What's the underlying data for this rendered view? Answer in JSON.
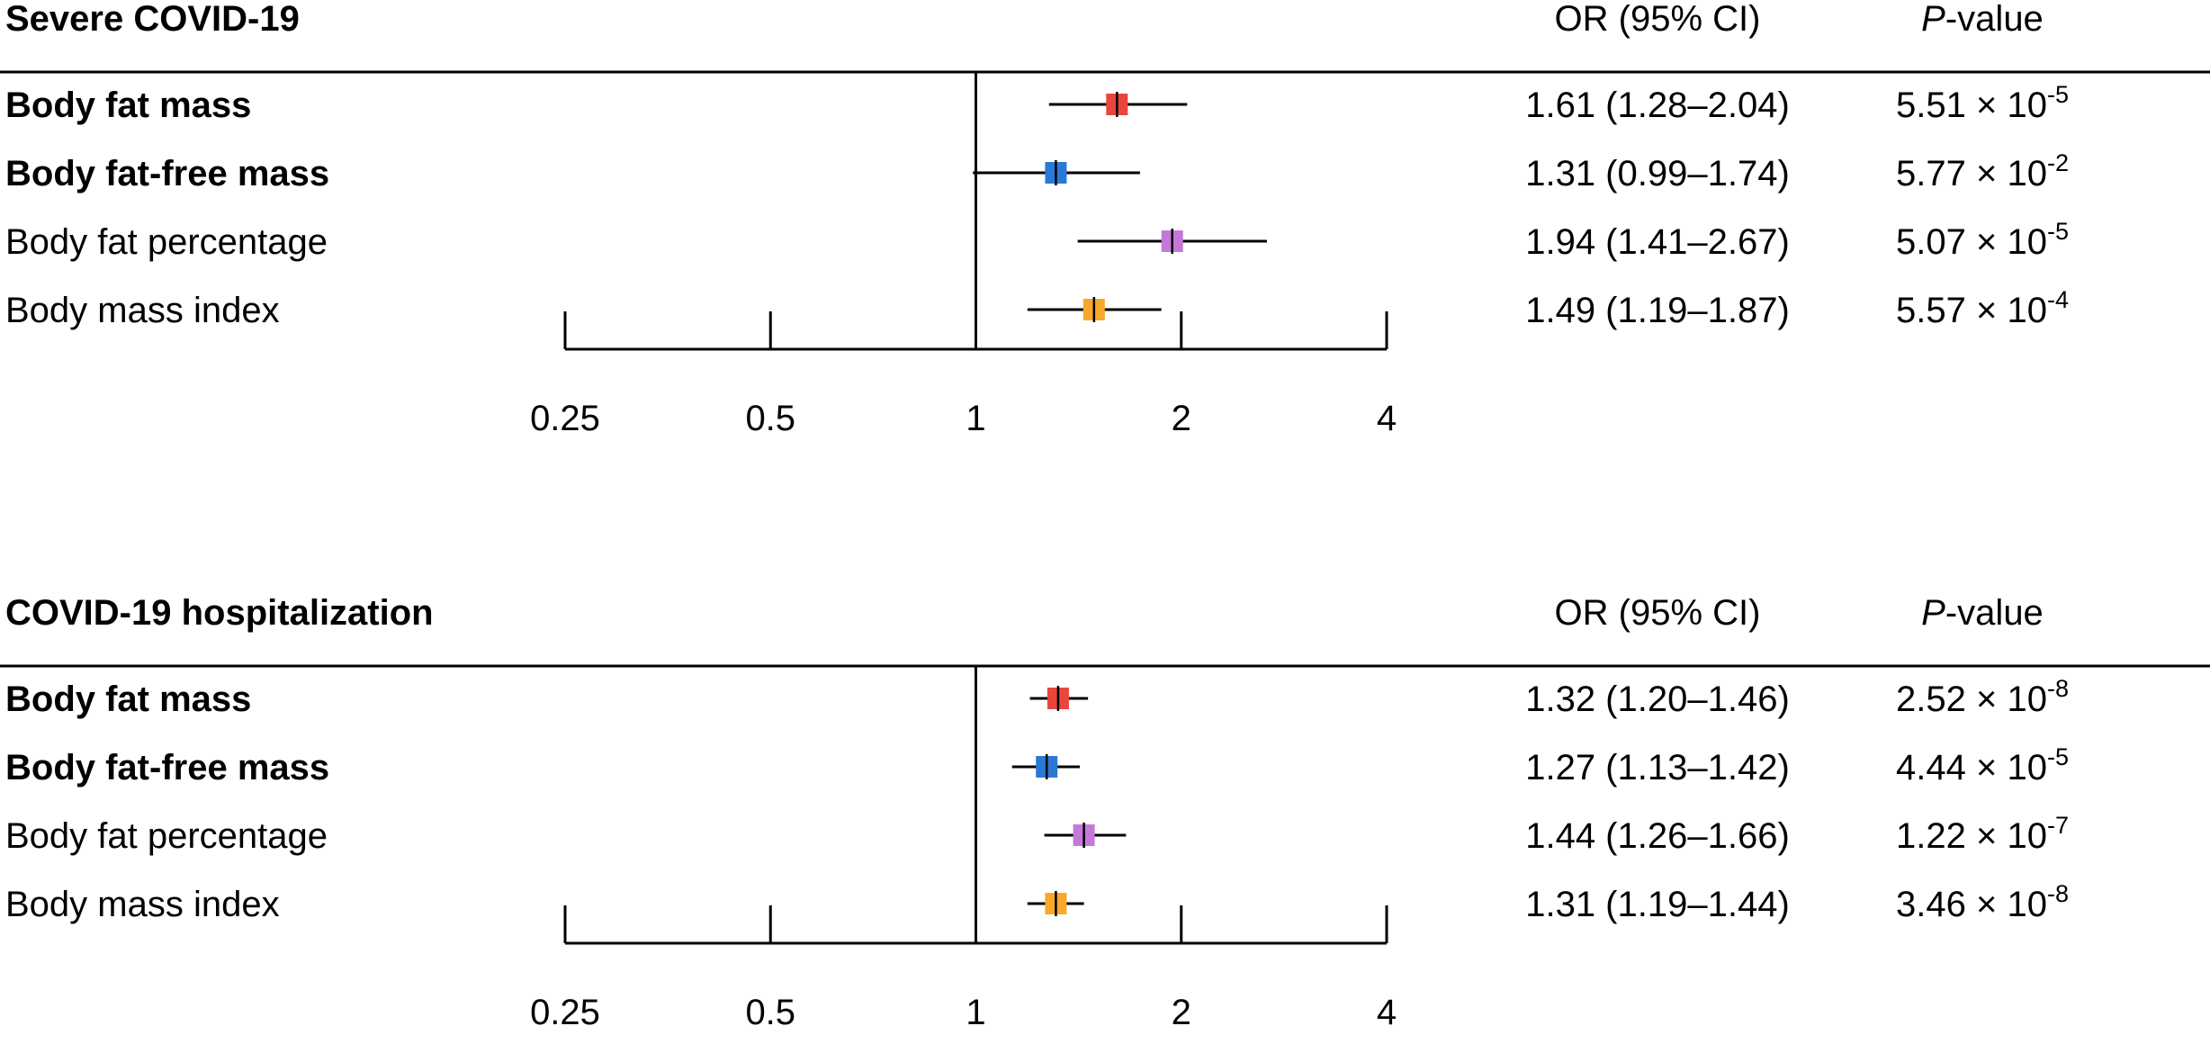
{
  "chart_data": [
    {
      "type": "forest",
      "title": "Severe COVID-19",
      "col_or_header": "OR (95% CI)",
      "col_p_header": {
        "italic": "P",
        "rest": "-value"
      },
      "x_scale": "log2",
      "xlim": [
        0.25,
        4
      ],
      "reference_line": 1,
      "ticks": [
        0.25,
        0.5,
        1,
        2,
        4
      ],
      "tick_labels": [
        "0.25",
        "0.5",
        "1",
        "2",
        "4"
      ],
      "rows": [
        {
          "label": "Body fat mass",
          "bold": true,
          "or": 1.61,
          "lo": 1.28,
          "hi": 2.04,
          "or_text": "1.61 (1.28–2.04)",
          "p_mant": "5.51 × 10",
          "p_exp": "-5",
          "color": "#e8453c"
        },
        {
          "label": "Body fat-free mass",
          "bold": true,
          "or": 1.31,
          "lo": 0.99,
          "hi": 1.74,
          "or_text": "1.31 (0.99–1.74)",
          "p_mant": "5.77 × 10",
          "p_exp": "-2",
          "color": "#2a79d6"
        },
        {
          "label": "Body fat percentage",
          "bold": false,
          "or": 1.94,
          "lo": 1.41,
          "hi": 2.67,
          "or_text": "1.94 (1.41–2.67)",
          "p_mant": "5.07 × 10",
          "p_exp": "-5",
          "color": "#c479d8"
        },
        {
          "label": "Body mass index",
          "bold": false,
          "or": 1.49,
          "lo": 1.19,
          "hi": 1.87,
          "or_text": "1.49 (1.19–1.87)",
          "p_mant": "5.57 × 10",
          "p_exp": "-4",
          "color": "#f6a92b"
        }
      ]
    },
    {
      "type": "forest",
      "title": "COVID-19 hospitalization",
      "col_or_header": "OR (95% CI)",
      "col_p_header": {
        "italic": "P",
        "rest": "-value"
      },
      "x_scale": "log2",
      "xlim": [
        0.25,
        4
      ],
      "reference_line": 1,
      "ticks": [
        0.25,
        0.5,
        1,
        2,
        4
      ],
      "tick_labels": [
        "0.25",
        "0.5",
        "1",
        "2",
        "4"
      ],
      "rows": [
        {
          "label": "Body fat mass",
          "bold": true,
          "or": 1.32,
          "lo": 1.2,
          "hi": 1.46,
          "or_text": "1.32 (1.20–1.46)",
          "p_mant": "2.52 × 10",
          "p_exp": "-8",
          "color": "#e8453c"
        },
        {
          "label": "Body fat-free mass",
          "bold": true,
          "or": 1.27,
          "lo": 1.13,
          "hi": 1.42,
          "or_text": "1.27 (1.13–1.42)",
          "p_mant": "4.44 × 10",
          "p_exp": "-5",
          "color": "#2a79d6"
        },
        {
          "label": "Body fat percentage",
          "bold": false,
          "or": 1.44,
          "lo": 1.26,
          "hi": 1.66,
          "or_text": "1.44 (1.26–1.66)",
          "p_mant": "1.22 × 10",
          "p_exp": "-7",
          "color": "#c479d8"
        },
        {
          "label": "Body mass index",
          "bold": false,
          "or": 1.31,
          "lo": 1.19,
          "hi": 1.44,
          "or_text": "1.31 (1.19–1.44)",
          "p_mant": "3.46 × 10",
          "p_exp": "-8",
          "color": "#f6a92b"
        }
      ]
    }
  ]
}
